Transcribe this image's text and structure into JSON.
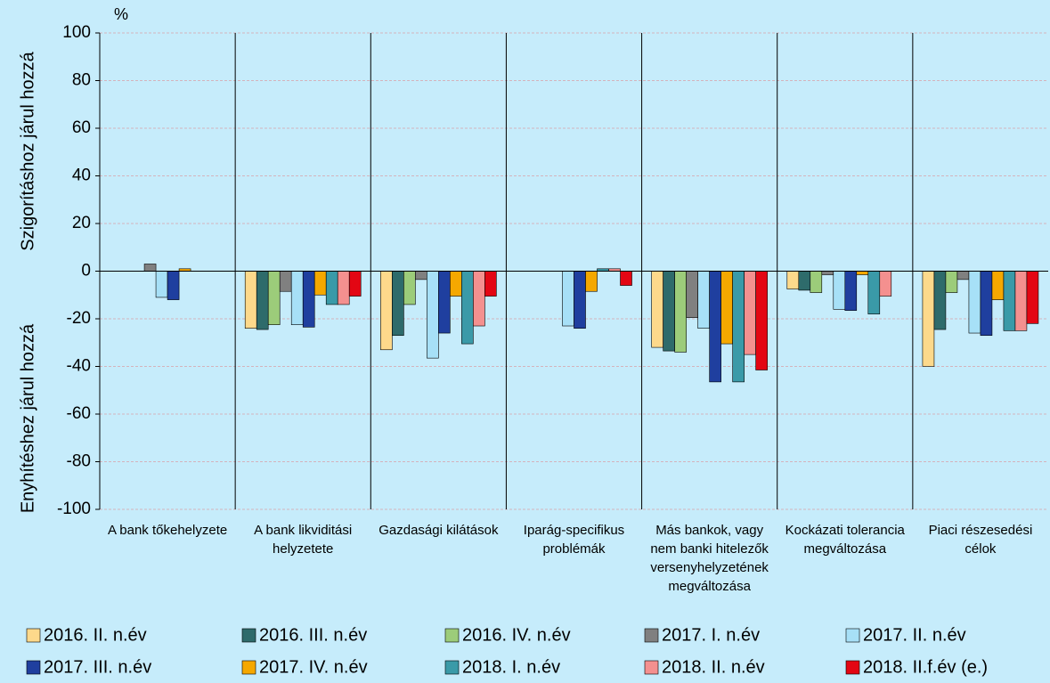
{
  "chart_data": {
    "type": "bar",
    "unit_label": "%",
    "y_label_top": "Szigorításhoz járul hozzá",
    "y_label_bottom": "Enyhítéshez járul hozzá",
    "categories": [
      "A bank tőkehelyzete",
      "A bank likviditási\nhelyzetete",
      "Gazdasági kilátások",
      "Iparág-specifikus\nproblémák",
      "Más bankok, vagy\nnem banki hitelezők\nversenyhelyzetének\nmegváltozása",
      "Kockázati tolerancia\nmegváltozása",
      "Piaci részesedési\ncélok"
    ],
    "series": [
      {
        "name": "2016. II. n.év",
        "color": "#fdd98b",
        "values": [
          0,
          -24,
          -33,
          0,
          -32,
          -7.5,
          -40
        ]
      },
      {
        "name": "2016. III. n.év",
        "color": "#2e6b6b",
        "values": [
          0,
          -24.5,
          -27,
          0,
          -33.5,
          -8,
          -24.5
        ]
      },
      {
        "name": "2016. IV. n.év",
        "color": "#9ccc7a",
        "values": [
          0,
          -22.5,
          -14,
          0,
          -34,
          -9,
          -9
        ]
      },
      {
        "name": "2017. I. n.év",
        "color": "#808080",
        "values": [
          3,
          -8.5,
          -3.5,
          0,
          -19.5,
          -1.5,
          -3.5
        ]
      },
      {
        "name": "2017. II. n.év",
        "color": "#a7e0f7",
        "values": [
          -11,
          -22.5,
          -36.5,
          -23,
          -24,
          -16,
          -26
        ]
      },
      {
        "name": "2017. III. n.év",
        "color": "#1f3f9f",
        "values": [
          -12,
          -23.5,
          -26,
          -24,
          -46.5,
          -16.5,
          -27
        ]
      },
      {
        "name": "2017. IV. n.év",
        "color": "#f5a800",
        "values": [
          1,
          -10,
          -10.5,
          -8.5,
          -30.5,
          -1.5,
          -12
        ]
      },
      {
        "name": "2018. I. n.év",
        "color": "#3a9aa8",
        "values": [
          0,
          -14,
          -30.5,
          1,
          -46.5,
          -18,
          -25
        ]
      },
      {
        "name": "2018. II. n.év",
        "color": "#f4908f",
        "values": [
          0,
          -14,
          -23,
          1,
          -35,
          -10.5,
          -25
        ]
      },
      {
        "name": "2018. II.f.év (e.)",
        "color": "#e30613",
        "values": [
          0,
          -10.5,
          -10.5,
          -6,
          -41.5,
          0,
          -22
        ]
      }
    ],
    "ylim": [
      -100,
      100
    ],
    "yticks": [
      -100,
      -80,
      -60,
      -40,
      -20,
      0,
      20,
      40,
      60,
      80,
      100
    ],
    "grid": true
  }
}
